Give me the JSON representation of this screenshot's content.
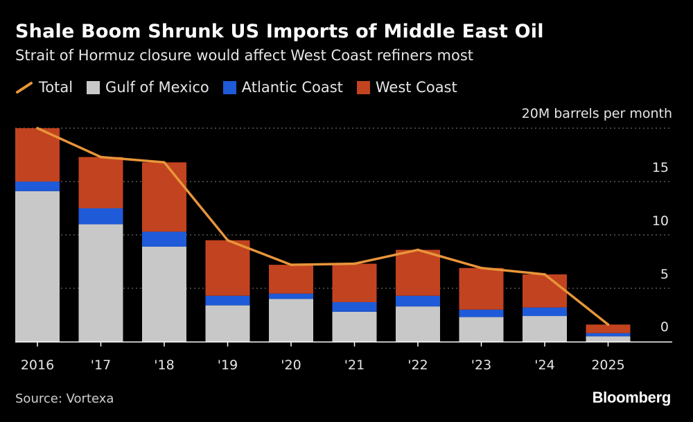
{
  "header": {
    "title": "Shale Boom Shrunk US Imports of Middle East Oil",
    "subtitle": "Strait of Hormuz closure would affect West Coast refiners most"
  },
  "legend": {
    "total": "Total",
    "gulf": "Gulf of Mexico",
    "atlantic": "Atlantic Coast",
    "west": "West Coast"
  },
  "colors": {
    "background": "#000000",
    "total": "#e8953a",
    "gulf": "#c8c8c8",
    "atlantic": "#1f5bd8",
    "west": "#c2431f",
    "grid": "#6b6b6b"
  },
  "footer": {
    "source": "Source: Vortexa",
    "brand": "Bloomberg"
  },
  "chart_data": {
    "type": "bar",
    "stacked": true,
    "categories": [
      "2016",
      "'17",
      "'18",
      "'19",
      "'20",
      "'21",
      "'22",
      "'23",
      "'24",
      "2025"
    ],
    "series": [
      {
        "name": "Gulf of Mexico",
        "values": [
          14.1,
          11.0,
          8.9,
          3.4,
          4.0,
          2.8,
          3.3,
          2.3,
          2.4,
          0.5
        ]
      },
      {
        "name": "Atlantic Coast",
        "values": [
          0.9,
          1.5,
          1.4,
          0.9,
          0.5,
          0.9,
          1.0,
          0.7,
          0.8,
          0.3
        ]
      },
      {
        "name": "West Coast",
        "values": [
          5.0,
          4.8,
          6.5,
          5.2,
          2.7,
          3.6,
          4.3,
          3.9,
          3.1,
          0.8
        ]
      }
    ],
    "line": {
      "name": "Total",
      "values": [
        20.0,
        17.3,
        16.8,
        9.5,
        7.2,
        7.3,
        8.6,
        6.9,
        6.3,
        1.6
      ]
    },
    "ylabel": "20M barrels per month",
    "ylim": [
      0,
      20
    ],
    "yticks": [
      "0",
      "5",
      "10",
      "15"
    ],
    "axis_side": "right",
    "grid": true,
    "legend_position": "top-left"
  }
}
